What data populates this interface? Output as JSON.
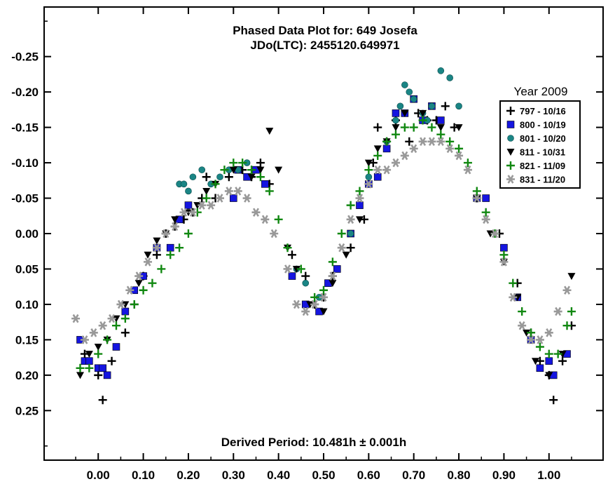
{
  "chart_data": {
    "type": "scatter",
    "title": "Phased Data Plot for: 649 Josefa",
    "subtitle": "JDo(LTC): 2455120.649971",
    "footer": "Derived Period: 10.481h ± 0.001h",
    "xlabel": "",
    "ylabel": "",
    "xlim": [
      -0.12,
      1.12
    ],
    "ylim": [
      -0.32,
      0.32
    ],
    "y_inverted": true,
    "x_ticks": [
      "0.00",
      "0.10",
      "0.20",
      "0.30",
      "0.40",
      "0.50",
      "0.60",
      "0.70",
      "0.80",
      "0.90",
      "1.00"
    ],
    "x_tick_values": [
      0,
      0.1,
      0.2,
      0.3,
      0.4,
      0.5,
      0.6,
      0.7,
      0.8,
      0.9,
      1.0
    ],
    "y_ticks": [
      "-0.25",
      "-0.20",
      "-0.15",
      "-0.10",
      "-0.05",
      "0.00",
      "0.05",
      "0.10",
      "0.15",
      "0.20",
      "0.25"
    ],
    "y_tick_values": [
      -0.25,
      -0.2,
      -0.15,
      -0.1,
      -0.05,
      0,
      0.05,
      0.1,
      0.15,
      0.2,
      0.25
    ],
    "grid": false,
    "legend": {
      "title": "Year 2009",
      "placement": "top-right",
      "entries": [
        {
          "label": "797 - 10/16",
          "marker": "plus",
          "color": "#000000"
        },
        {
          "label": "800 - 10/19",
          "marker": "square",
          "color": "#1515e0"
        },
        {
          "label": "801 - 10/20",
          "marker": "circle",
          "color": "#1a8585"
        },
        {
          "label": "811 - 10/31",
          "marker": "triangle-down",
          "color": "#000000"
        },
        {
          "label": "821 - 11/09",
          "marker": "plus",
          "color": "#118811"
        },
        {
          "label": "831 - 11/20",
          "marker": "asterisk",
          "color": "#999999"
        }
      ]
    },
    "series": [
      {
        "name": "797 - 10/16",
        "marker": "plus",
        "color": "#000000",
        "x": [
          -0.03,
          0.0,
          0.01,
          0.03,
          0.06,
          0.08,
          0.1,
          0.13,
          0.15,
          0.17,
          0.19,
          0.21,
          0.23,
          0.24,
          0.26,
          0.29,
          0.32,
          0.34,
          0.36,
          0.38,
          0.43,
          0.46,
          0.48,
          0.5,
          0.52,
          0.56,
          0.59,
          0.61,
          0.62,
          0.64,
          0.66,
          0.69,
          0.71,
          0.73,
          0.75,
          0.77,
          0.79,
          0.84,
          0.89,
          0.93,
          0.96,
          0.98,
          1.0,
          1.01,
          1.03,
          1.05
        ],
        "y": [
          0.17,
          0.2,
          0.235,
          0.18,
          0.14,
          0.1,
          0.06,
          0.03,
          0.0,
          -0.01,
          -0.02,
          -0.03,
          -0.05,
          -0.08,
          -0.05,
          -0.08,
          -0.09,
          -0.08,
          -0.1,
          -0.07,
          0.03,
          0.06,
          0.1,
          0.09,
          0.06,
          0.02,
          -0.02,
          -0.1,
          -0.15,
          -0.13,
          -0.16,
          -0.13,
          -0.17,
          -0.16,
          -0.16,
          -0.18,
          -0.15,
          -0.05,
          0.0,
          0.07,
          0.14,
          0.18,
          0.2,
          0.235,
          0.18,
          0.13
        ]
      },
      {
        "name": "800 - 10/19",
        "marker": "square",
        "color": "#1515e0",
        "x": [
          -0.04,
          -0.03,
          -0.02,
          0.0,
          0.01,
          0.02,
          0.04,
          0.06,
          0.08,
          0.1,
          0.13,
          0.16,
          0.18,
          0.2,
          0.3,
          0.31,
          0.33,
          0.35,
          0.37,
          0.43,
          0.46,
          0.49,
          0.51,
          0.53,
          0.56,
          0.58,
          0.6,
          0.62,
          0.64,
          0.66,
          0.68,
          0.7,
          0.72,
          0.74,
          0.76,
          0.84,
          0.86,
          0.9,
          0.93,
          0.96,
          0.98,
          1.0,
          1.01,
          1.04
        ],
        "y": [
          0.15,
          0.18,
          0.18,
          0.19,
          0.19,
          0.2,
          0.16,
          0.11,
          0.08,
          0.06,
          0.02,
          0.02,
          -0.02,
          -0.04,
          -0.05,
          -0.09,
          -0.08,
          -0.09,
          -0.07,
          0.06,
          0.1,
          0.11,
          0.07,
          0.05,
          0.0,
          -0.04,
          -0.07,
          -0.08,
          -0.12,
          -0.17,
          -0.17,
          -0.19,
          -0.16,
          -0.18,
          -0.16,
          -0.05,
          -0.05,
          0.02,
          0.09,
          0.15,
          0.19,
          0.18,
          0.2,
          0.17
        ]
      },
      {
        "name": "801 - 10/20",
        "marker": "circle",
        "color": "#1a8585",
        "x": [
          0.18,
          0.19,
          0.2,
          0.21,
          0.23,
          0.25,
          0.27,
          0.29,
          0.31,
          0.33,
          0.44,
          0.46,
          0.49,
          0.56,
          0.6,
          0.64,
          0.66,
          0.67,
          0.68,
          0.69,
          0.7,
          0.72,
          0.73,
          0.74,
          0.76,
          0.78,
          0.8
        ],
        "y": [
          -0.07,
          -0.07,
          -0.06,
          -0.08,
          -0.09,
          -0.07,
          -0.08,
          -0.09,
          -0.09,
          -0.1,
          0.05,
          0.07,
          0.09,
          0.0,
          -0.08,
          -0.13,
          -0.16,
          -0.18,
          -0.21,
          -0.2,
          -0.19,
          -0.17,
          -0.16,
          -0.18,
          -0.23,
          -0.22,
          -0.18
        ]
      },
      {
        "name": "811 - 10/31",
        "marker": "triangle-down",
        "color": "#000000",
        "x": [
          -0.04,
          -0.02,
          0.0,
          0.02,
          0.04,
          0.06,
          0.09,
          0.11,
          0.13,
          0.15,
          0.17,
          0.2,
          0.22,
          0.24,
          0.26,
          0.3,
          0.34,
          0.36,
          0.38,
          0.4,
          0.42,
          0.44,
          0.47,
          0.5,
          0.52,
          0.55,
          0.58,
          0.6,
          0.62,
          0.64,
          0.66,
          0.68,
          0.72,
          0.76,
          0.8,
          0.84,
          0.87,
          0.9,
          0.93,
          0.95,
          0.97,
          1.0,
          1.03,
          1.05
        ],
        "y": [
          0.2,
          0.17,
          0.16,
          0.15,
          0.12,
          0.1,
          0.07,
          0.03,
          0.01,
          0.0,
          -0.02,
          -0.03,
          -0.04,
          -0.06,
          -0.07,
          -0.09,
          -0.08,
          -0.09,
          -0.145,
          -0.09,
          0.02,
          0.05,
          0.1,
          0.11,
          0.07,
          0.03,
          -0.02,
          -0.1,
          -0.12,
          -0.13,
          -0.15,
          -0.17,
          -0.17,
          -0.15,
          -0.15,
          -0.05,
          0.0,
          0.04,
          0.09,
          0.14,
          0.18,
          0.2,
          0.17,
          0.06
        ]
      },
      {
        "name": "821 - 11/09",
        "marker": "plus",
        "color": "#118811",
        "x": [
          -0.04,
          -0.02,
          0.0,
          0.02,
          0.04,
          0.06,
          0.08,
          0.1,
          0.12,
          0.14,
          0.16,
          0.18,
          0.2,
          0.22,
          0.24,
          0.26,
          0.28,
          0.3,
          0.32,
          0.34,
          0.36,
          0.38,
          0.4,
          0.42,
          0.45,
          0.48,
          0.5,
          0.52,
          0.54,
          0.56,
          0.58,
          0.6,
          0.62,
          0.64,
          0.66,
          0.68,
          0.7,
          0.72,
          0.74,
          0.76,
          0.78,
          0.8,
          0.82,
          0.84,
          0.86,
          0.88,
          0.9,
          0.92,
          0.94,
          0.96,
          0.98,
          1.0,
          1.02,
          1.04,
          1.05
        ],
        "y": [
          0.19,
          0.19,
          0.17,
          0.15,
          0.13,
          0.12,
          0.1,
          0.08,
          0.07,
          0.05,
          0.03,
          0.02,
          0.0,
          -0.03,
          -0.05,
          -0.07,
          -0.09,
          -0.1,
          -0.1,
          -0.09,
          -0.08,
          -0.06,
          -0.02,
          0.02,
          0.05,
          0.09,
          0.08,
          0.04,
          0.0,
          -0.04,
          -0.06,
          -0.09,
          -0.11,
          -0.13,
          -0.14,
          -0.15,
          -0.15,
          -0.16,
          -0.15,
          -0.14,
          -0.13,
          -0.12,
          -0.1,
          -0.06,
          -0.03,
          0.0,
          0.03,
          0.07,
          0.11,
          0.14,
          0.16,
          0.17,
          0.17,
          0.13,
          0.11
        ]
      },
      {
        "name": "831 - 11/20",
        "marker": "asterisk",
        "color": "#999999",
        "x": [
          -0.05,
          -0.03,
          -0.01,
          0.01,
          0.03,
          0.05,
          0.07,
          0.09,
          0.11,
          0.13,
          0.15,
          0.17,
          0.19,
          0.21,
          0.23,
          0.25,
          0.27,
          0.29,
          0.31,
          0.33,
          0.35,
          0.37,
          0.39,
          0.42,
          0.44,
          0.46,
          0.48,
          0.5,
          0.52,
          0.54,
          0.56,
          0.58,
          0.6,
          0.62,
          0.64,
          0.66,
          0.68,
          0.7,
          0.72,
          0.74,
          0.76,
          0.78,
          0.8,
          0.82,
          0.84,
          0.86,
          0.88,
          0.9,
          0.92,
          0.94,
          0.96,
          0.98,
          1.0,
          1.02,
          1.04
        ],
        "y": [
          0.12,
          0.15,
          0.14,
          0.13,
          0.12,
          0.1,
          0.08,
          0.06,
          0.04,
          0.02,
          0.0,
          -0.01,
          -0.03,
          -0.03,
          -0.04,
          -0.04,
          -0.05,
          -0.06,
          -0.06,
          -0.05,
          -0.03,
          -0.02,
          0.0,
          0.05,
          0.1,
          0.11,
          0.1,
          0.09,
          0.06,
          0.02,
          -0.02,
          -0.05,
          -0.07,
          -0.09,
          -0.09,
          -0.1,
          -0.11,
          -0.12,
          -0.13,
          -0.13,
          -0.13,
          -0.12,
          -0.11,
          -0.09,
          -0.05,
          -0.02,
          0.0,
          0.04,
          0.09,
          0.13,
          0.15,
          0.15,
          0.14,
          0.11,
          0.08
        ]
      }
    ]
  }
}
